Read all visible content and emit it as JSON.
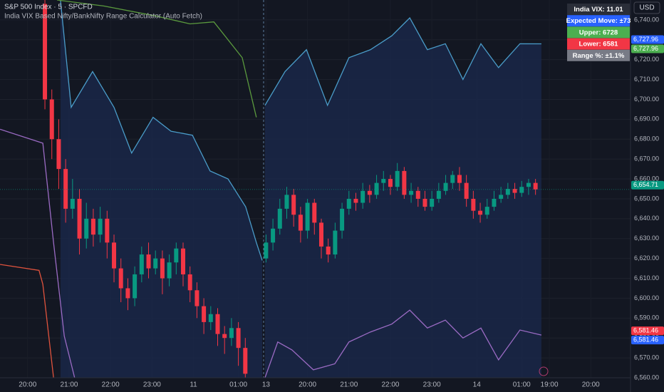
{
  "chart_data": {
    "type": "candlestick",
    "title": "S&P 500 Index · 5 · SPCFD",
    "subtitle": "India VIX Based Nifty/BankNifty Range Calculator (Auto Fetch)",
    "currency": "USD",
    "xlim": [
      0,
      182.5
    ],
    "ylim": [
      6560,
      6750
    ],
    "yticks": [
      {
        "value": 6560,
        "label": "6,560.00"
      },
      {
        "value": 6570,
        "label": "6,570.00"
      },
      {
        "value": 6580,
        "label": "6,580.00"
      },
      {
        "value": 6590,
        "label": "6,590.00"
      },
      {
        "value": 6600,
        "label": "6,600.00"
      },
      {
        "value": 6610,
        "label": "6,610.00"
      },
      {
        "value": 6620,
        "label": "6,620.00"
      },
      {
        "value": 6630,
        "label": "6,630.00"
      },
      {
        "value": 6640,
        "label": "6,640.00"
      },
      {
        "value": 6650,
        "label": "6,650.00"
      },
      {
        "value": 6660,
        "label": "6,660.00"
      },
      {
        "value": 6670,
        "label": "6,670.00"
      },
      {
        "value": 6680,
        "label": "6,680.00"
      },
      {
        "value": 6690,
        "label": "6,690.00"
      },
      {
        "value": 6700,
        "label": "6,700.00"
      },
      {
        "value": 6710,
        "label": "6,710.00"
      },
      {
        "value": 6720,
        "label": "6,720.00"
      },
      {
        "value": 6730,
        "label": "6,730.00"
      },
      {
        "value": 6740,
        "label": "6,740.00"
      }
    ],
    "xticks": [
      {
        "value": 8,
        "label": "20:00"
      },
      {
        "value": 20,
        "label": "21:00"
      },
      {
        "value": 32,
        "label": "22:00"
      },
      {
        "value": 44,
        "label": "23:00"
      },
      {
        "value": 56,
        "label": "11"
      },
      {
        "value": 69,
        "label": "01:00"
      },
      {
        "value": 77,
        "label": "13"
      },
      {
        "value": 89,
        "label": "20:00"
      },
      {
        "value": 101,
        "label": "21:00"
      },
      {
        "value": 113,
        "label": "22:00"
      },
      {
        "value": 125,
        "label": "23:00"
      },
      {
        "value": 138,
        "label": "14"
      },
      {
        "value": 151,
        "label": "01:00"
      },
      {
        "value": 159,
        "label": "19:00"
      },
      {
        "value": 171,
        "label": "20:00"
      }
    ],
    "up_color": "#089981",
    "down_color": "#f23645",
    "x": [
      13,
      15,
      17,
      19,
      21,
      23,
      25,
      27,
      29,
      31,
      33,
      35,
      37,
      39,
      41,
      43,
      45,
      47,
      49,
      51,
      53,
      55,
      57,
      59,
      61,
      63,
      65,
      67,
      69,
      71,
      77,
      79,
      81,
      83,
      85,
      87,
      89,
      91,
      93,
      95,
      97,
      99,
      101,
      103,
      105,
      107,
      109,
      111,
      113,
      115,
      117,
      119,
      121,
      123,
      125,
      127,
      129,
      131,
      133,
      135,
      137,
      139,
      141,
      143,
      145,
      147,
      149,
      151,
      153,
      155
    ],
    "open": [
      6748,
      6700,
      6680,
      6665,
      6645,
      6650,
      6630,
      6640,
      6632,
      6640,
      6628,
      6615,
      6605,
      6600,
      6612,
      6622,
      6615,
      6620,
      6610,
      6618,
      6625,
      6612,
      6604,
      6596,
      6588,
      6592,
      6582,
      6580,
      6585,
      6575,
      6620,
      6628,
      6635,
      6645,
      6652,
      6642,
      6634,
      6648,
      6638,
      6626,
      6622,
      6634,
      6645,
      6650,
      6648,
      6654,
      6652,
      6658,
      6660,
      6656,
      6664,
      6652,
      6654,
      6650,
      6646,
      6650,
      6654,
      6658,
      6662,
      6658,
      6650,
      6644,
      6642,
      6646,
      6650,
      6652,
      6655,
      6653,
      6656,
      6658
    ],
    "high": [
      6752,
      6705,
      6690,
      6670,
      6660,
      6655,
      6648,
      6645,
      6646,
      6644,
      6632,
      6620,
      6610,
      6616,
      6626,
      6628,
      6624,
      6624,
      6622,
      6628,
      6628,
      6616,
      6608,
      6600,
      6596,
      6595,
      6586,
      6590,
      6588,
      6580,
      6632,
      6640,
      6650,
      6656,
      6655,
      6646,
      6650,
      6650,
      6640,
      6630,
      6638,
      6648,
      6654,
      6653,
      6658,
      6657,
      6662,
      6664,
      6662,
      6668,
      6666,
      6658,
      6656,
      6654,
      6654,
      6658,
      6662,
      6664,
      6666,
      6662,
      6654,
      6648,
      6650,
      6654,
      6656,
      6658,
      6658,
      6659,
      6660,
      6660
    ],
    "low": [
      6695,
      6670,
      6655,
      6638,
      6640,
      6622,
      6625,
      6626,
      6628,
      6620,
      6608,
      6598,
      6594,
      6596,
      6608,
      6610,
      6612,
      6602,
      6606,
      6612,
      6606,
      6598,
      6590,
      6582,
      6584,
      6576,
      6572,
      6576,
      6566,
      6555,
      6618,
      6624,
      6632,
      6640,
      6636,
      6628,
      6630,
      6632,
      6620,
      6618,
      6620,
      6630,
      6642,
      6644,
      6645,
      6648,
      6650,
      6654,
      6652,
      6654,
      6650,
      6648,
      6646,
      6644,
      6644,
      6648,
      6652,
      6655,
      6654,
      6646,
      6640,
      6638,
      6640,
      6644,
      6648,
      6650,
      6650,
      6651,
      6652,
      6652
    ],
    "close": [
      6700,
      6680,
      6665,
      6645,
      6650,
      6630,
      6640,
      6632,
      6640,
      6628,
      6615,
      6605,
      6600,
      6612,
      6622,
      6615,
      6620,
      6610,
      6618,
      6625,
      6612,
      6604,
      6596,
      6588,
      6592,
      6582,
      6580,
      6585,
      6575,
      6562,
      6628,
      6635,
      6645,
      6652,
      6642,
      6634,
      6648,
      6638,
      6626,
      6622,
      6634,
      6645,
      6650,
      6648,
      6654,
      6652,
      6658,
      6660,
      6656,
      6664,
      6652,
      6654,
      6650,
      6646,
      6650,
      6654,
      6658,
      6662,
      6658,
      6650,
      6644,
      6642,
      6646,
      6650,
      6652,
      6655,
      6653,
      6656,
      6658,
      6654.71
    ],
    "series": [
      {
        "color": "#4a9cc9",
        "x": [
          17.5,
          20.6,
          26.8,
          33,
          38.1,
          44.3,
          49.5,
          55.7,
          60.8,
          66,
          71.1,
          74.2,
          75.9,
          null,
          76.7,
          82.5,
          88.7,
          94.8,
          101,
          107.2,
          113.4,
          118.6,
          123.7,
          128.9,
          134,
          139.2,
          144.3,
          150.5,
          156.7
        ],
        "values": [
          6750,
          6696,
          6714,
          6696,
          6673,
          6691,
          6684,
          6682,
          6664,
          6660,
          6646,
          6628,
          6619,
          null,
          6697,
          6714,
          6725,
          6697,
          6721,
          6725,
          6732,
          6741,
          6725,
          6728,
          6710,
          6728,
          6716,
          6728,
          6727.96
        ]
      },
      {
        "color": "#9b6bc4",
        "x": [
          0,
          12.4,
          15.5,
          18.6,
          21.6,
          null,
          76.7,
          80.4,
          84.5,
          90.7,
          96.9,
          101,
          107.2,
          113.4,
          118.6,
          123.7,
          128.9,
          134,
          139.2,
          144.3,
          150.5,
          156.7
        ],
        "values": [
          6685,
          6678,
          6628,
          6581,
          6560,
          null,
          6560,
          6578,
          6574,
          6564,
          6567,
          6578,
          6583,
          6587,
          6594,
          6585,
          6589,
          6580,
          6585,
          6569,
          6584,
          6581.46
        ]
      },
      {
        "color": "#5b9a3e",
        "x": [
          16.5,
          30,
          45,
          55,
          61.9,
          70.1,
          74.2
        ],
        "values": [
          6750,
          6747,
          6742,
          6738,
          6739,
          6721,
          6691
        ]
      },
      {
        "color": "#e0533d",
        "x": [
          0,
          11.3,
          12.4,
          15.5
        ],
        "values": [
          6617,
          6614,
          6607,
          6560
        ]
      }
    ],
    "price_labels": [
      {
        "value": 6727.96,
        "label": "6,727.96",
        "color": "#2962ff"
      },
      {
        "value": 6727.96,
        "label": "6,727.96",
        "color": "#4caf50"
      },
      {
        "value": 6654.71,
        "label": "6,654.71",
        "color": "#089981"
      },
      {
        "value": 6581.46,
        "label": "6,581.46",
        "color": "#f23645"
      },
      {
        "value": 6581.46,
        "label": "6,581.46",
        "color": "#2962ff"
      }
    ],
    "table": {
      "rows": [
        {
          "text": "India VIX: 11.01",
          "color": "#2a2e39"
        },
        {
          "text": "Expected Move: ±73",
          "color": "#2962ff"
        },
        {
          "text": "Upper: 6728",
          "color": "#4caf50"
        },
        {
          "text": "Lower: 6581",
          "color": "#f23645"
        },
        {
          "text": "Range %: ±1.1%",
          "color": "#787b86"
        }
      ]
    }
  }
}
